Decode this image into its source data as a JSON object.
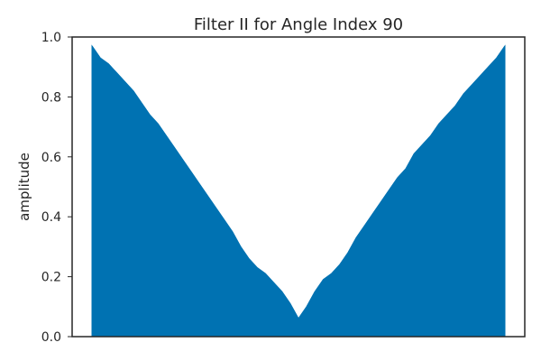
{
  "chart_data": {
    "type": "area",
    "title": "Filter II for Angle Index 90",
    "xlabel": "",
    "ylabel": "amplitude",
    "ylim": [
      0,
      1.0
    ],
    "yticks": [
      "0.0",
      "0.2",
      "0.4",
      "0.6",
      "0.8",
      "1.0"
    ],
    "xticks": [],
    "grid": false,
    "legend": "none",
    "x": [
      0,
      0.02,
      0.04,
      0.06,
      0.08,
      0.1,
      0.12,
      0.14,
      0.16,
      0.18,
      0.2,
      0.22,
      0.24,
      0.26,
      0.28,
      0.3,
      0.32,
      0.34,
      0.36,
      0.38,
      0.4,
      0.42,
      0.44,
      0.46,
      0.48,
      0.5,
      0.52,
      0.54,
      0.56,
      0.58,
      0.6,
      0.62,
      0.64,
      0.66,
      0.68,
      0.7,
      0.72,
      0.74,
      0.76,
      0.78,
      0.8,
      0.82,
      0.84,
      0.86,
      0.88,
      0.9,
      0.92,
      0.94,
      0.96,
      0.98,
      1.0
    ],
    "series": [
      {
        "values": [
          0.97,
          0.93,
          0.91,
          0.88,
          0.85,
          0.82,
          0.78,
          0.74,
          0.71,
          0.67,
          0.63,
          0.59,
          0.55,
          0.51,
          0.47,
          0.43,
          0.39,
          0.35,
          0.3,
          0.26,
          0.23,
          0.21,
          0.18,
          0.15,
          0.11,
          0.06,
          0.1,
          0.15,
          0.19,
          0.21,
          0.24,
          0.28,
          0.33,
          0.37,
          0.41,
          0.45,
          0.49,
          0.53,
          0.56,
          0.61,
          0.64,
          0.67,
          0.71,
          0.74,
          0.77,
          0.81,
          0.84,
          0.87,
          0.9,
          0.93,
          0.97
        ],
        "color": "#0072b2"
      }
    ]
  }
}
